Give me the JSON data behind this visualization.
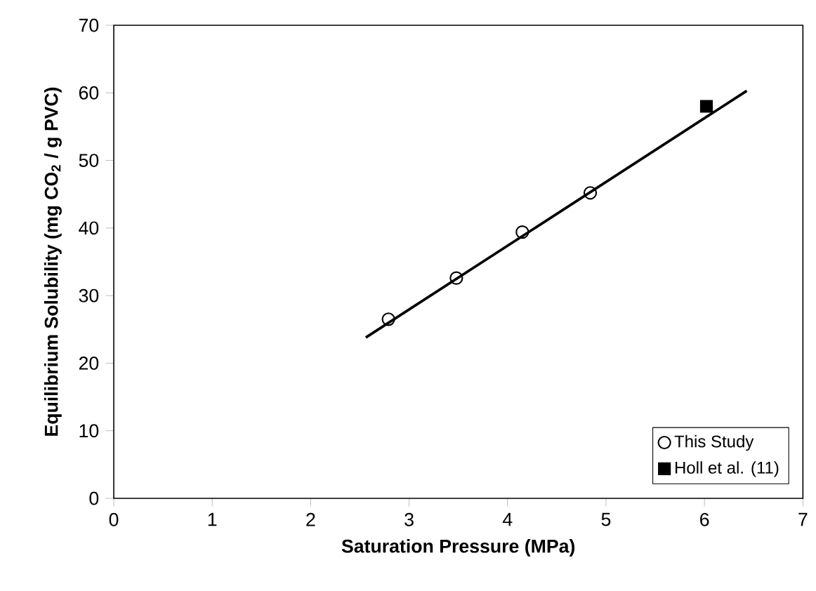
{
  "chart_data": {
    "type": "scatter",
    "xlabel": "Saturation Pressure (MPa)",
    "ylabel": "Equilibrium Solubility (mg CO$_{2}$ / g PVC)",
    "xlim": [
      0,
      7
    ],
    "ylim": [
      0,
      70
    ],
    "xticks": [
      0,
      1,
      2,
      3,
      4,
      5,
      6,
      7
    ],
    "yticks": [
      0,
      10,
      20,
      30,
      40,
      50,
      60,
      70
    ],
    "grid": false,
    "legend": "bottom right",
    "series": [
      {
        "name": "This Study",
        "marker": "circle",
        "color": "#000000",
        "x": [
          2.79,
          3.48,
          4.15,
          4.84
        ],
        "values": [
          26.5,
          32.6,
          39.4,
          45.2
        ]
      },
      {
        "name": "Holl et al. (11)",
        "marker": "square",
        "color": "#000000",
        "x": [
          6.02
        ],
        "values": [
          58.0
        ]
      },
      {
        "type": "line",
        "marker": "none",
        "color": "#000000",
        "x": [
          2.56,
          6.43
        ],
        "values": [
          23.8,
          60.3
        ]
      }
    ]
  }
}
